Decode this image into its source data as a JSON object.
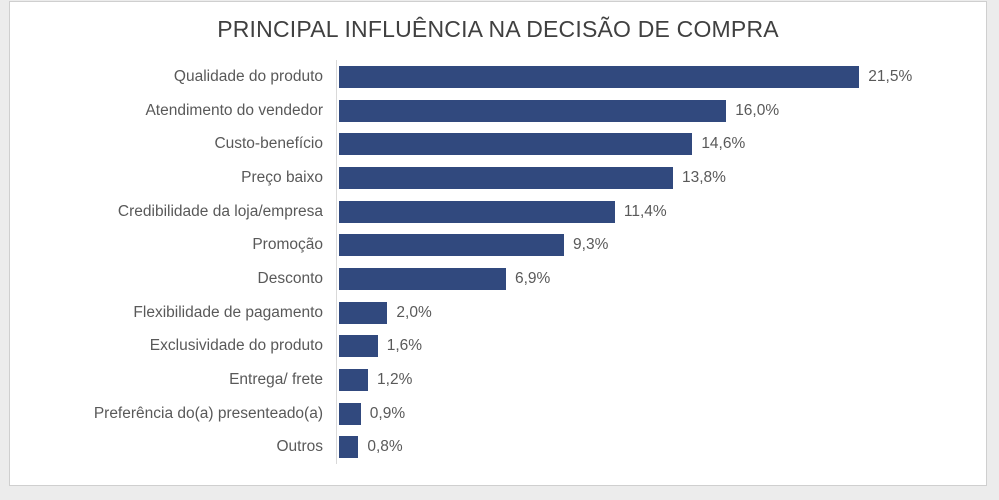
{
  "title": "PRINCIPAL INFLUÊNCIA NA DECISÃO DE COMPRA",
  "colors": {
    "bar": "#31497E",
    "title_text": "#404040",
    "label_text": "#595959",
    "axis_line": "#d9d9d9",
    "panel_background": "#ffffff",
    "panel_border": "#cfcfcf",
    "outer_background": "#ececec"
  },
  "chart_data": {
    "type": "bar",
    "orientation": "horizontal",
    "title": "PRINCIPAL INFLUÊNCIA NA DECISÃO DE COMPRA",
    "xlabel": "",
    "ylabel": "",
    "xlim": [
      0,
      25
    ],
    "grid": false,
    "legend": false,
    "categories": [
      "Qualidade do produto",
      "Atendimento do vendedor",
      "Custo-benefício",
      "Preço baixo",
      "Credibilidade da loja/empresa",
      "Promoção",
      "Desconto",
      "Flexibilidade de pagamento",
      "Exclusividade do produto",
      "Entrega/ frete",
      "Preferência do(a) presenteado(a)",
      "Outros"
    ],
    "values": [
      21.5,
      16.0,
      14.6,
      13.8,
      11.4,
      9.3,
      6.9,
      2.0,
      1.6,
      1.2,
      0.9,
      0.8
    ],
    "value_labels": [
      "21,5%",
      "16,0%",
      "14,6%",
      "13,8%",
      "11,4%",
      "9,3%",
      "6,9%",
      "2,0%",
      "1,6%",
      "1,2%",
      "0,9%",
      "0,8%"
    ]
  }
}
